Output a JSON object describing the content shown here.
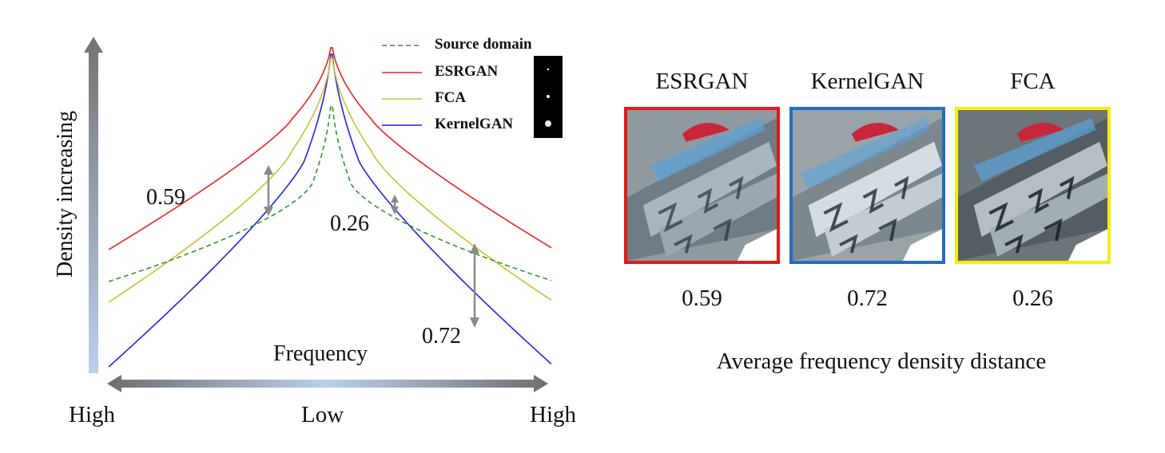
{
  "left_plot": {
    "y_axis_label": "Density increasing",
    "x_axis_label": "Frequency",
    "x_ticks": [
      "High",
      "Low",
      "High"
    ],
    "legend": [
      {
        "label": "Source domain",
        "color": "#2a9a2a",
        "style": "dashed"
      },
      {
        "label": "ESRGAN",
        "color": "#ee2222",
        "style": "solid"
      },
      {
        "label": "FCA",
        "color": "#c8c232",
        "style": "solid"
      },
      {
        "label": "KernelGAN",
        "color": "#2424e0",
        "style": "solid"
      }
    ],
    "annotations": [
      "0.59",
      "0.26",
      "0.72"
    ]
  },
  "right_panel": {
    "methods": [
      {
        "name": "ESRGAN",
        "value": "0.59",
        "border_color": "#e01b1b"
      },
      {
        "name": "KernelGAN",
        "value": "0.72",
        "border_color": "#1f6fc1"
      },
      {
        "name": "FCA",
        "value": "0.26",
        "border_color": "#f5ee12"
      }
    ],
    "caption": "Average frequency density distance"
  },
  "colors": {
    "axis_gradient_dark": "#777777",
    "axis_gradient_light": "#b8cde8",
    "arrow_gray": "#8a8a8a"
  },
  "icons": [
    "up-arrow-icon",
    "double-arrow-icon",
    "kernel-dot-icon"
  ]
}
